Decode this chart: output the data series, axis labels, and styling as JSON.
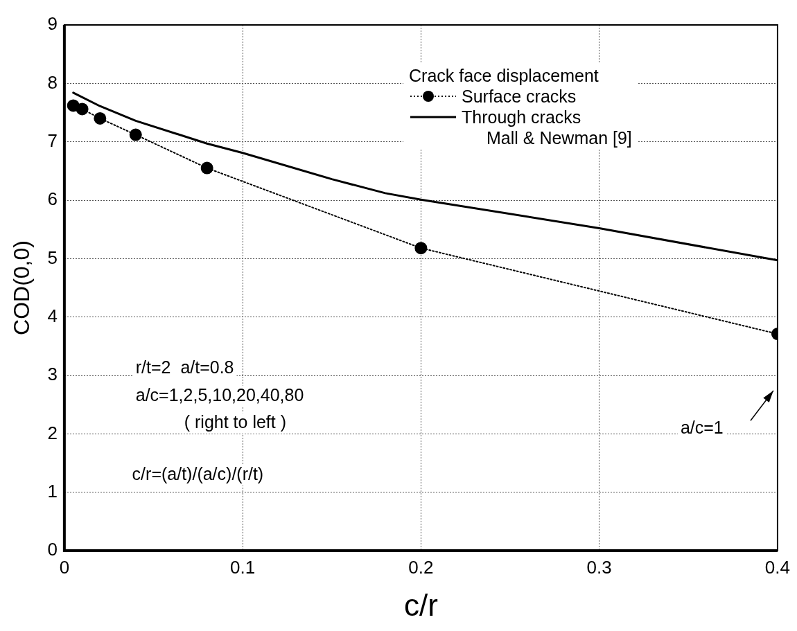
{
  "chart_data": {
    "type": "line",
    "xlabel": "c/r",
    "ylabel": "COD(0,0)",
    "legend_title": "Crack face displacement",
    "legend": "top right",
    "grid": true,
    "xlim": [
      0,
      0.4
    ],
    "xticks": [
      0,
      0.1,
      0.2,
      0.3,
      0.4
    ],
    "ylim": [
      0,
      9
    ],
    "yticks": [
      0,
      1,
      2,
      3,
      4,
      5,
      6,
      7,
      8,
      9
    ],
    "series": [
      {
        "name": "Surface cracks",
        "color": "#000000",
        "marker": "circle",
        "line_style": "dotted",
        "x": [
          0.005,
          0.01,
          0.02,
          0.04,
          0.08,
          0.2,
          0.4
        ],
        "values": [
          7.62,
          7.56,
          7.4,
          7.12,
          6.55,
          5.18,
          3.71
        ]
      },
      {
        "name": "Through cracks",
        "color": "#000000",
        "marker": "none",
        "line_style": "solid",
        "x": [
          0.005,
          0.02,
          0.04,
          0.08,
          0.1,
          0.15,
          0.18,
          0.2,
          0.3,
          0.4
        ],
        "values": [
          7.84,
          7.61,
          7.36,
          6.97,
          6.81,
          6.36,
          6.12,
          6.01,
          5.52,
          4.97
        ]
      }
    ],
    "annotations": [
      "r/t=2  a/t=0.8",
      "a/c=1,2,5,10,20,40,80",
      "( right to left )",
      "c/r=(a/t)/(a/c)/(r/t)",
      "a/c=1",
      "Mall & Newman [9]"
    ]
  }
}
